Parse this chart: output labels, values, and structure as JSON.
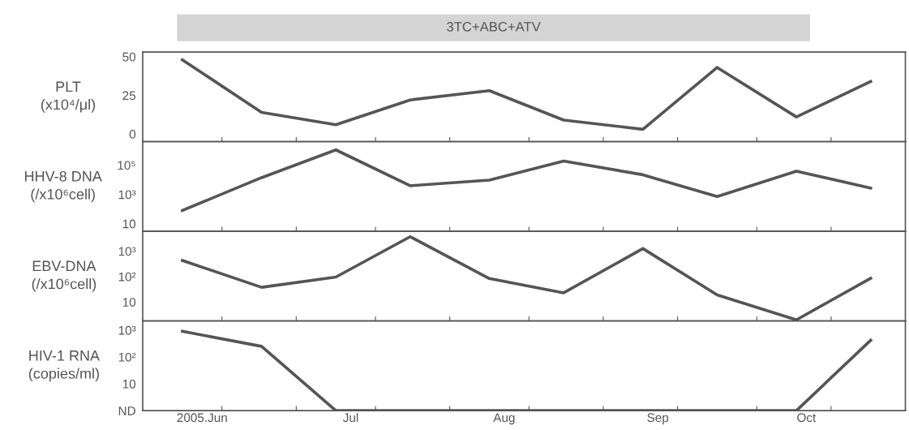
{
  "chart_data": [
    {
      "type": "line",
      "ylabel": "PLT\n(x10⁴/μl)",
      "x": [
        "2005-05-28",
        "2005-06-13",
        "2005-06-28",
        "2005-07-13",
        "2005-07-29",
        "2005-08-13",
        "2005-08-29",
        "2005-09-13",
        "2005-09-29",
        "2005-10-14"
      ],
      "series": [
        {
          "color": "#555555",
          "values": [
            48,
            14,
            6,
            22,
            28,
            9,
            3,
            43,
            11,
            34
          ]
        }
      ],
      "ylim": [
        -5,
        53
      ],
      "yticks": [
        0,
        25,
        50
      ],
      "xlim": [
        "2005-05-20",
        "2005-10-21"
      ],
      "xticks": [
        {
          "value": "2005-06-05",
          "label": null
        },
        {
          "value": "2005-06-20",
          "label": null
        },
        {
          "value": "2005-07-06",
          "label": null
        },
        {
          "value": "2005-07-21",
          "label": null
        },
        {
          "value": "2005-08-06",
          "label": null
        },
        {
          "value": "2005-08-21",
          "label": null
        },
        {
          "value": "2005-09-05",
          "label": null
        },
        {
          "value": "2005-09-21",
          "label": null
        },
        {
          "value": "2005-10-06",
          "label": null
        }
      ],
      "title": "3TC+ABC+ATV",
      "tick_labels": "y",
      "grid": false,
      "legend": false,
      "line_style": "solid",
      "marker": "none"
    },
    {
      "type": "line",
      "ylabel": "HHV-8 DNA\n(/x10⁶cell)",
      "x": [
        "2005-05-28",
        "2005-06-13",
        "2005-06-28",
        "2005-07-13",
        "2005-07-29",
        "2005-08-13",
        "2005-08-29",
        "2005-09-13",
        "2005-09-29",
        "2005-10-14"
      ],
      "series": [
        {
          "color": "#555555",
          "values": [
            80,
            14000,
            1100000,
            3900,
            9400,
            190000,
            22000,
            720,
            39000,
            2700
          ]
        }
      ],
      "log": "y",
      "ylim": [
        3,
        4000000
      ],
      "yticks": [
        {
          "value": 10,
          "label": "10"
        },
        {
          "value": 1000,
          "label": "10³"
        },
        {
          "value": 100000,
          "label": "10⁵"
        }
      ],
      "xlim": [
        "2005-05-20",
        "2005-10-21"
      ],
      "xticks": [
        {
          "value": "2005-06-05",
          "label": null
        },
        {
          "value": "2005-06-20",
          "label": null
        },
        {
          "value": "2005-07-06",
          "label": null
        },
        {
          "value": "2005-07-21",
          "label": null
        },
        {
          "value": "2005-08-06",
          "label": null
        },
        {
          "value": "2005-08-21",
          "label": null
        },
        {
          "value": "2005-09-05",
          "label": null
        },
        {
          "value": "2005-09-21",
          "label": null
        },
        {
          "value": "2005-10-06",
          "label": null
        }
      ],
      "tick_labels": "y",
      "grid": false,
      "legend": false,
      "line_style": "solid",
      "marker": "none"
    },
    {
      "type": "line",
      "ylabel": "EBV-DNA\n(/x10⁶cell)",
      "x": [
        "2005-05-28",
        "2005-06-13",
        "2005-06-28",
        "2005-07-13",
        "2005-07-29",
        "2005-08-13",
        "2005-08-29",
        "2005-09-13",
        "2005-09-29",
        "2005-10-14"
      ],
      "series": [
        {
          "color": "#555555",
          "values": [
            430,
            38,
            96,
            3700,
            84,
            23,
            1260,
            19,
            2,
            86
          ]
        }
      ],
      "log": "y",
      "ylim": [
        1.8,
        6000
      ],
      "yticks": [
        {
          "value": 10,
          "label": "10"
        },
        {
          "value": 100,
          "label": "10²"
        },
        {
          "value": 1000,
          "label": "10³"
        }
      ],
      "xlim": [
        "2005-05-20",
        "2005-10-21"
      ],
      "xticks": [
        {
          "value": "2005-06-05",
          "label": null
        },
        {
          "value": "2005-06-20",
          "label": null
        },
        {
          "value": "2005-07-06",
          "label": null
        },
        {
          "value": "2005-07-21",
          "label": null
        },
        {
          "value": "2005-08-06",
          "label": null
        },
        {
          "value": "2005-08-21",
          "label": null
        },
        {
          "value": "2005-09-05",
          "label": null
        },
        {
          "value": "2005-09-21",
          "label": null
        },
        {
          "value": "2005-10-06",
          "label": null
        }
      ],
      "tick_labels": "y",
      "grid": false,
      "legend": false,
      "line_style": "solid",
      "marker": "none"
    },
    {
      "type": "line",
      "ylabel": "HIV-1 RNA\n(copies/ml)",
      "x": [
        "2005-05-28",
        "2005-06-13",
        "2005-06-28",
        "2005-07-13",
        "2005-07-29",
        "2005-08-13",
        "2005-08-29",
        "2005-09-13",
        "2005-09-29",
        "2005-10-14"
      ],
      "series": [
        {
          "color": "#555555",
          "values": [
            910,
            250,
            1,
            1,
            1,
            1,
            1,
            1,
            1,
            420
          ]
        }
      ],
      "log": "y",
      "ylim": [
        1,
        2200
      ],
      "yticks": [
        {
          "value": 1,
          "label": "ND"
        },
        {
          "value": 10,
          "label": "10"
        },
        {
          "value": 100,
          "label": "10²"
        },
        {
          "value": 1000,
          "label": "10³"
        }
      ],
      "xlim": [
        "2005-05-20",
        "2005-10-21"
      ],
      "xticks": [
        {
          "value": "2005-06-01",
          "label": "2005.Jun"
        },
        {
          "value": "2005-06-05",
          "label": null
        },
        {
          "value": "2005-06-20",
          "label": null
        },
        {
          "value": "2005-07-01",
          "label": "Jul"
        },
        {
          "value": "2005-07-06",
          "label": null
        },
        {
          "value": "2005-07-21",
          "label": null
        },
        {
          "value": "2005-08-01",
          "label": "Aug"
        },
        {
          "value": "2005-08-06",
          "label": null
        },
        {
          "value": "2005-08-21",
          "label": null
        },
        {
          "value": "2005-09-01",
          "label": "Sep"
        },
        {
          "value": "2005-09-05",
          "label": null
        },
        {
          "value": "2005-09-21",
          "label": null
        },
        {
          "value": "2005-10-01",
          "label": "Oct"
        },
        {
          "value": "2005-10-06",
          "label": null
        }
      ],
      "grid": false,
      "legend": false,
      "line_style": "solid",
      "marker": "none"
    }
  ]
}
